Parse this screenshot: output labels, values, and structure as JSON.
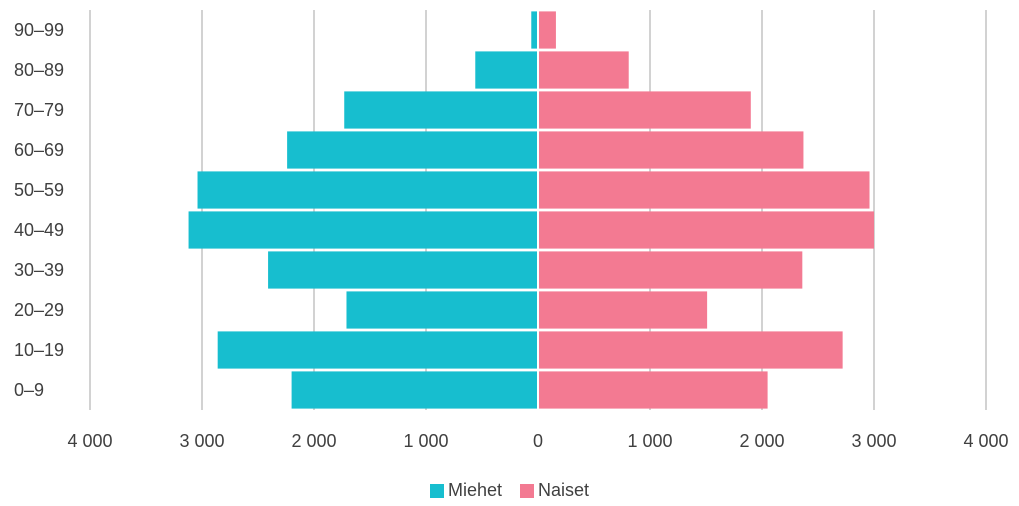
{
  "chart_data": {
    "type": "bar",
    "orientation": "horizontal",
    "subtype": "population-pyramid",
    "categories": [
      "0–9",
      "10–19",
      "20–29",
      "30–39",
      "40–49",
      "50–59",
      "60–69",
      "70–79",
      "80–89",
      "90–99"
    ],
    "series": [
      {
        "name": "Miehet",
        "color": "#17becf",
        "values": [
          2200,
          2860,
          1710,
          2410,
          3120,
          3040,
          2240,
          1730,
          560,
          60
        ]
      },
      {
        "name": "Naiset",
        "color": "#f37a92",
        "values": [
          2050,
          2720,
          1510,
          2360,
          3000,
          2960,
          2370,
          1900,
          810,
          160
        ]
      }
    ],
    "xlim": [
      -4000,
      4000
    ],
    "x_ticks": [
      "4 000",
      "3 000",
      "2 000",
      "1 000",
      "0",
      "1 000",
      "2 000",
      "3 000",
      "4 000"
    ],
    "grid": true,
    "legend_position": "bottom"
  }
}
